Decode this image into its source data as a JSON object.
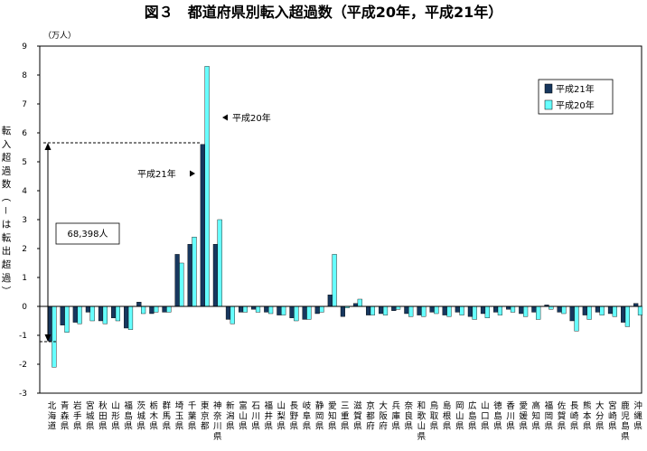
{
  "chart_data": {
    "type": "bar",
    "title": "図３　都道府県別転入超過数（平成20年，平成21年）",
    "unit_label": "（万人）",
    "ylabel": "転入超過数（－は転出超過）",
    "ylim": [
      -3,
      9
    ],
    "yticks": [
      -3,
      -2,
      -1,
      0,
      1,
      2,
      3,
      4,
      5,
      6,
      7,
      8,
      9
    ],
    "categories": [
      "北海道",
      "青森県",
      "岩手県",
      "宮城県",
      "秋田県",
      "山形県",
      "福島県",
      "茨城県",
      "栃木県",
      "群馬県",
      "埼玉県",
      "千葉県",
      "東京都",
      "神奈川県",
      "新潟県",
      "富山県",
      "石川県",
      "福井県",
      "山梨県",
      "長野県",
      "岐阜県",
      "静岡県",
      "愛知県",
      "三重県",
      "滋賀県",
      "京都府",
      "大阪府",
      "兵庫県",
      "奈良県",
      "和歌山県",
      "鳥取県",
      "島根県",
      "岡山県",
      "広島県",
      "山口県",
      "徳島県",
      "香川県",
      "愛媛県",
      "高知県",
      "福岡県",
      "佐賀県",
      "長崎県",
      "熊本県",
      "大分県",
      "宮崎県",
      "鹿児島県",
      "沖縄県"
    ],
    "series": [
      {
        "name": "平成21年",
        "color": "#17375E",
        "values": [
          -1.2,
          -0.65,
          -0.55,
          -0.2,
          -0.5,
          -0.4,
          -0.75,
          0.15,
          -0.25,
          -0.2,
          1.8,
          2.15,
          5.6,
          2.15,
          -0.45,
          -0.2,
          -0.1,
          -0.2,
          -0.3,
          -0.4,
          -0.45,
          -0.25,
          0.4,
          -0.35,
          0.1,
          -0.3,
          -0.25,
          -0.15,
          -0.25,
          -0.3,
          -0.2,
          -0.3,
          -0.2,
          -0.35,
          -0.25,
          -0.2,
          -0.1,
          -0.25,
          -0.2,
          0.05,
          -0.2,
          -0.5,
          -0.3,
          -0.2,
          -0.25,
          -0.55,
          0.1
        ]
      },
      {
        "name": "平成20年",
        "color": "#66FFFF",
        "values": [
          -2.1,
          -0.9,
          -0.6,
          -0.5,
          -0.6,
          -0.5,
          -0.8,
          -0.25,
          -0.2,
          -0.2,
          1.5,
          2.4,
          8.3,
          3.0,
          -0.6,
          -0.2,
          -0.2,
          -0.25,
          -0.3,
          -0.5,
          -0.45,
          -0.2,
          1.8,
          -0.05,
          0.25,
          -0.3,
          -0.3,
          -0.1,
          -0.35,
          -0.35,
          -0.25,
          -0.35,
          -0.3,
          -0.45,
          -0.4,
          -0.3,
          -0.2,
          -0.35,
          -0.45,
          -0.1,
          -0.25,
          -0.85,
          -0.45,
          -0.3,
          -0.35,
          -0.7,
          -0.3
        ]
      }
    ],
    "legend_position": "top-right",
    "grid": false,
    "annotations": {
      "h20_label": "平成20年",
      "h21_label": "平成21年",
      "box_value": "68,398人"
    }
  }
}
